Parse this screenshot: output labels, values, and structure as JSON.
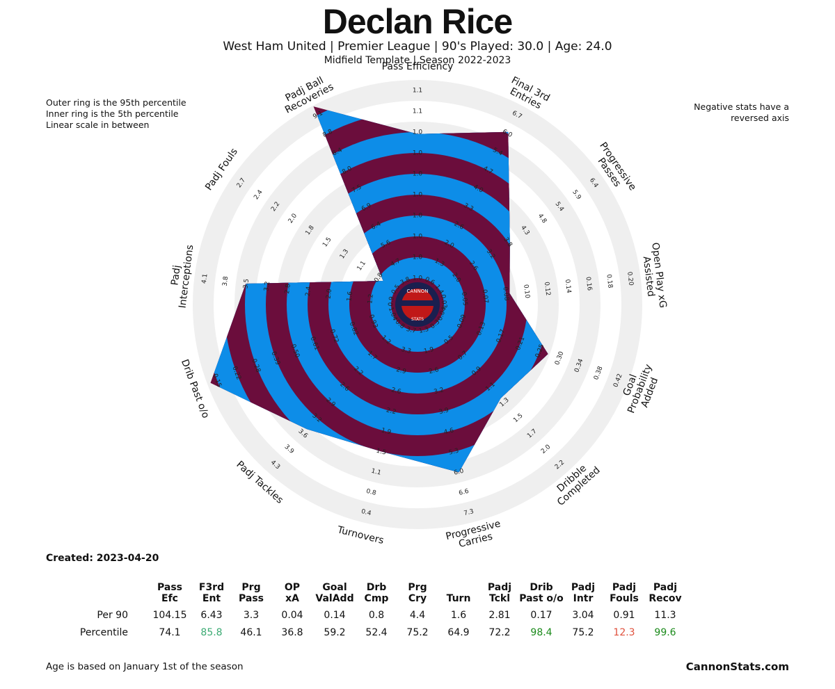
{
  "header": {
    "title": "Declan Rice",
    "subtitle": "West Ham United  | Premier League | 90's Played: 30.0 | Age: 24.0",
    "subtitle2": "Midfield Template | Season 2022-2023"
  },
  "notes": {
    "left": [
      "Outer ring is the 95th percentile",
      "Inner ring is the 5th percentile",
      "Linear scale in between"
    ],
    "right": [
      "Negative stats have a",
      "reversed axis"
    ]
  },
  "logo": {
    "text_top": "CANNON",
    "text_bottom": "STATS",
    "icon": "cannon-stats-badge"
  },
  "colors": {
    "maroon": "#6b0d3c",
    "blue": "#0d8de8",
    "ring": "#efefef"
  },
  "chart_data": {
    "type": "radar",
    "scale": "percentile (5th inner, 95th outer)",
    "axes": [
      {
        "label": "Pass Efficiency",
        "lines": [
          "Pass Efficiency"
        ],
        "percentile": 74.1,
        "ticks": [
          "1.0",
          "1.0",
          "1.0",
          "1.0",
          "1.0",
          "1.0",
          "1.0",
          "1.0",
          "1.1",
          "1.1"
        ]
      },
      {
        "label": "Final 3rd Entries",
        "lines": [
          "Final 3rd",
          "Entries"
        ],
        "percentile": 85.8,
        "ticks": [
          "0.6",
          "1.3",
          "2.0",
          "2.6",
          "3.3",
          "4.0",
          "4.7",
          "5.4",
          "6.0",
          "6.7"
        ]
      },
      {
        "label": "Progressive Passes",
        "lines": [
          "Progressive",
          "Passes"
        ],
        "percentile": 46.1,
        "ticks": [
          "1.4",
          "2.0",
          "2.6",
          "3.2",
          "3.8",
          "4.3",
          "4.8",
          "5.4",
          "5.9",
          "6.4"
        ]
      },
      {
        "label": "Open Play xG Assisted",
        "lines": [
          "Open Play xG",
          "Assisted"
        ],
        "percentile": 36.8,
        "ticks": [
          "0.03",
          "0.05",
          "0.07",
          "0.08",
          "0.10",
          "0.12",
          "0.14",
          "0.16",
          "0.18",
          "0.20"
        ]
      },
      {
        "label": "Goal Probability Added",
        "lines": [
          "Goal",
          "Probability",
          "Added"
        ],
        "percentile": 59.2,
        "ticks": [
          "0.04",
          "0.09",
          "0.13",
          "0.17",
          "0.21",
          "0.25",
          "0.30",
          "0.34",
          "0.38",
          "0.42"
        ]
      },
      {
        "label": "Dribble Completed",
        "lines": [
          "Dribble",
          "Completed"
        ],
        "percentile": 52.4,
        "ticks": [
          "0.3",
          "0.5",
          "0.7",
          "0.9",
          "1.1",
          "1.3",
          "1.5",
          "1.7",
          "2.0",
          "2.2"
        ]
      },
      {
        "label": "Progressive Carries",
        "lines": [
          "Progressive",
          "Carries"
        ],
        "percentile": 75.2,
        "ticks": [
          "1.3",
          "1.9",
          "2.6",
          "3.2",
          "3.9",
          "4.6",
          "5.3",
          "6.0",
          "6.6",
          "7.3"
        ]
      },
      {
        "label": "Turnovers",
        "lines": [
          "Turnovers"
        ],
        "percentile": 64.9,
        "ticks": [
          "3.7",
          "3.3",
          "2.9",
          "2.6",
          "2.2",
          "1.9",
          "1.5",
          "1.1",
          "0.8",
          "0.4"
        ]
      },
      {
        "label": "Padj Tackles",
        "lines": [
          "Padj Tackles"
        ],
        "percentile": 72.2,
        "ticks": [
          "0.8",
          "1.2",
          "1.7",
          "2.2",
          "2.6",
          "2.9",
          "3.2",
          "3.6",
          "3.9",
          "4.3"
        ]
      },
      {
        "label": "Drib Past o/o",
        "lines": [
          "Drib Past o/o"
        ],
        "percentile": 98.4,
        "ticks": [
          "1.04",
          "0.93",
          "0.82",
          "0.72",
          "0.61",
          "0.50",
          "0.39",
          "0.28",
          "0.22",
          "0.15"
        ]
      },
      {
        "label": "Padj Interceptions",
        "lines": [
          "Padj",
          "Interceptions"
        ],
        "percentile": 75.2,
        "ticks": [
          "0.9",
          "1.2",
          "1.6",
          "2.0",
          "2.4",
          "2.8",
          "3.2",
          "3.5",
          "3.8",
          "4.1"
        ]
      },
      {
        "label": "Padj Fouls",
        "lines": [
          "Padj Fouls"
        ],
        "percentile": 12.3,
        "ticks": [
          "0.5",
          "0.8",
          "1.1",
          "1.3",
          "1.5",
          "1.8",
          "2.0",
          "2.2",
          "2.4",
          "2.7"
        ]
      },
      {
        "label": "Padj Ball Recoveries",
        "lines": [
          "Padj Ball",
          "Recoveries"
        ],
        "percentile": 99.6,
        "ticks": [
          "3.8",
          "4.7",
          "5.6",
          "6.4",
          "6.9",
          "7.5",
          "8.0",
          "8.4",
          "8.8",
          "9.1"
        ]
      }
    ]
  },
  "created": "Created: 2023-04-20",
  "stats_table": {
    "headers": [
      [
        "Pass",
        "Efc"
      ],
      [
        "F3rd",
        "Ent"
      ],
      [
        "Prg",
        "Pass"
      ],
      [
        "OP",
        "xA"
      ],
      [
        "Goal",
        "ValAdd"
      ],
      [
        "Drb",
        "Cmp"
      ],
      [
        "Prg",
        "Cry"
      ],
      [
        "",
        "Turn"
      ],
      [
        "Padj",
        "Tckl"
      ],
      [
        "Drib",
        "Past o/o"
      ],
      [
        "Padj",
        "Intr"
      ],
      [
        "Padj",
        "Fouls"
      ],
      [
        "Padj",
        "Recov"
      ]
    ],
    "rows": [
      {
        "label": "Per 90",
        "values": [
          "104.15",
          "6.43",
          "3.3",
          "0.04",
          "0.14",
          "0.8",
          "4.4",
          "1.6",
          "2.81",
          "0.17",
          "3.04",
          "0.91",
          "11.3"
        ]
      },
      {
        "label": "Percentile",
        "values": [
          "74.1",
          "85.8",
          "46.1",
          "36.8",
          "59.2",
          "52.4",
          "75.2",
          "64.9",
          "72.2",
          "98.4",
          "75.2",
          "12.3",
          "99.6"
        ],
        "colors": [
          "#111",
          "#3aaa72",
          "#111",
          "#111",
          "#111",
          "#111",
          "#111",
          "#111",
          "#111",
          "#1a8a1a",
          "#111",
          "#e0503c",
          "#1a8a1a"
        ]
      }
    ]
  },
  "footer": {
    "note": "Age is based on January 1st of the season",
    "site": "CannonStats.com"
  }
}
